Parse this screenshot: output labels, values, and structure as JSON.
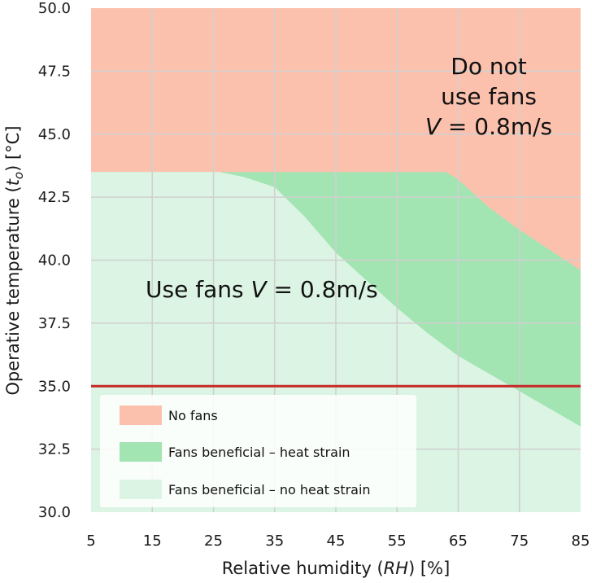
{
  "chart_data": {
    "type": "area",
    "xlabel": "Relative humidity (RH) [%]",
    "ylabel": "Operative temperature (to) [°C]",
    "xlim": [
      5,
      85
    ],
    "ylim": [
      30,
      50
    ],
    "x_ticks": [
      5,
      15,
      25,
      35,
      45,
      55,
      65,
      75,
      85
    ],
    "y_ticks": [
      30.0,
      32.5,
      35.0,
      37.5,
      40.0,
      42.5,
      45.0,
      47.5,
      50.0
    ],
    "y_tick_labels": [
      "30.0",
      "32.5",
      "35.0",
      "37.5",
      "40.0",
      "42.5",
      "45.0",
      "47.5",
      "50.0"
    ],
    "grid": true,
    "colors": {
      "no_fans": "#fcc1ad",
      "heat_strain": "#a3e4b3",
      "no_heat_strain": "#dcf4e3",
      "threshold_line": "#c62828",
      "grid": "#d0d0d0"
    },
    "boundaries": {
      "upper_limit": {
        "x": [
          5,
          63,
          65,
          70,
          75,
          80,
          85
        ],
        "y": [
          43.5,
          43.5,
          43.2,
          42.1,
          41.2,
          40.4,
          39.6
        ]
      },
      "heat_strain_limit": {
        "x": [
          5,
          26,
          30,
          35,
          40,
          45,
          50,
          55,
          60,
          65,
          70,
          75,
          80,
          85
        ],
        "y": [
          43.5,
          43.5,
          43.3,
          42.9,
          41.7,
          40.3,
          39.2,
          38.1,
          37.1,
          36.2,
          35.5,
          34.8,
          34.1,
          33.4
        ]
      }
    },
    "threshold_y": 35.0,
    "annotations": [
      {
        "lines": [
          "Do not",
          "use fans",
          "V = 0.8m/s"
        ],
        "position": "top-right"
      },
      {
        "lines": [
          "Use fans V = 0.8m/s"
        ],
        "position": "middle-left"
      }
    ],
    "legend": {
      "position": "lower-left",
      "entries": [
        {
          "label": "No fans",
          "color_key": "no_fans"
        },
        {
          "label": "Fans beneficial – heat strain",
          "color_key": "heat_strain"
        },
        {
          "label": "Fans beneficial – no heat strain",
          "color_key": "no_heat_strain"
        }
      ]
    }
  }
}
